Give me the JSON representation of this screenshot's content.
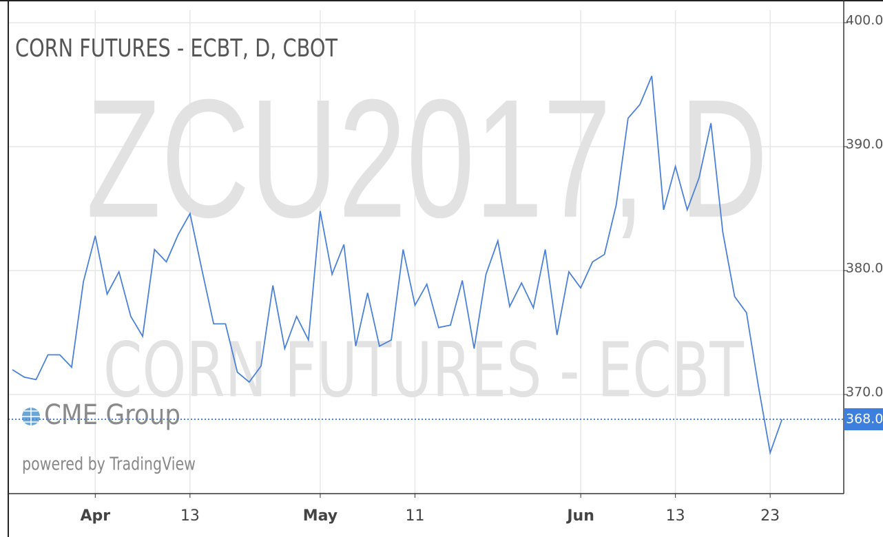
{
  "chart_data": {
    "type": "line",
    "title": "CORN FUTURES - ECBT, D, CBOT",
    "watermark": "ZCU2017, D",
    "watermark_subtitle": "CORN FUTURES - ECBT",
    "brand": "CME Group",
    "powered_by": "powered by TradingView",
    "categories": [
      null,
      null,
      null,
      null,
      null,
      null,
      null,
      "Apr",
      null,
      null,
      null,
      null,
      null,
      null,
      null,
      "13",
      null,
      null,
      null,
      null,
      null,
      null,
      null,
      null,
      null,
      null,
      "May",
      null,
      null,
      null,
      null,
      null,
      null,
      null,
      "11",
      null,
      null,
      null,
      null,
      null,
      null,
      null,
      null,
      null,
      null,
      null,
      null,
      null,
      "Jun",
      null,
      null,
      null,
      null,
      null,
      null,
      null,
      "13",
      null,
      null,
      null,
      null,
      null,
      null,
      null,
      "23",
      null
    ],
    "series": [
      {
        "name": "ZCU2017",
        "color": "#4a80d8",
        "values": [
          372.0,
          371.4,
          371.2,
          373.2,
          373.2,
          372.2,
          379.1,
          382.8,
          378.1,
          379.9,
          376.3,
          374.7,
          381.7,
          380.7,
          382.9,
          384.6,
          380.1,
          375.7,
          375.7,
          371.8,
          371.0,
          372.3,
          378.8,
          373.7,
          376.3,
          374.4,
          384.8,
          379.7,
          382.1,
          373.9,
          378.2,
          373.9,
          374.4,
          381.7,
          377.2,
          378.9,
          375.4,
          375.6,
          379.2,
          373.7,
          379.7,
          382.4,
          377.1,
          379.0,
          377.0,
          381.7,
          374.8,
          379.9,
          378.6,
          380.7,
          381.3,
          385.3,
          392.3,
          393.4,
          395.7,
          384.9,
          388.4,
          384.9,
          387.5,
          391.9,
          383.1,
          377.9,
          376.6,
          370.7,
          365.3,
          368.0
        ]
      }
    ],
    "last_price": {
      "value": 368,
      "label": "368.0"
    },
    "ylim": [
      362,
      401
    ],
    "yticks": [
      {
        "value": 370,
        "label": "370.0"
      },
      {
        "value": 380,
        "label": "380.0"
      },
      {
        "value": 390,
        "label": "390.0"
      },
      {
        "value": 400,
        "label": "400.0"
      }
    ],
    "grid": true
  }
}
